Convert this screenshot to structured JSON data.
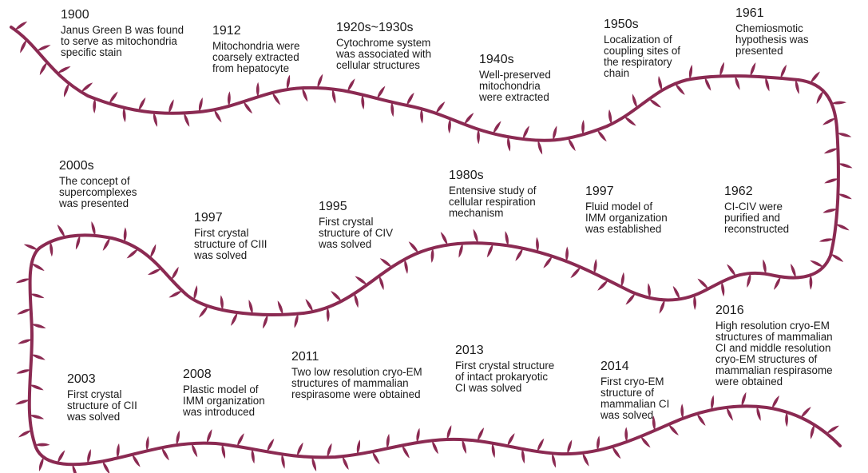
{
  "colors": {
    "vine": "#8b2a52",
    "text": "#1a1a1a",
    "background": "#ffffff"
  },
  "events": [
    {
      "id": "e1900",
      "year": "1900",
      "description": "Janus Green B was found\nto serve as mitochondria\nspecific  stain"
    },
    {
      "id": "e1912",
      "year": "1912",
      "description": "Mitochondria were\ncoarsely extracted\nfrom hepatocyte"
    },
    {
      "id": "e1920s",
      "year": "1920s~1930s",
      "description": "Cytochrome system\nwas associated with\ncellular structures"
    },
    {
      "id": "e1940s",
      "year": "1940s",
      "description": "Well-preserved\nmitochondria\nwere extracted"
    },
    {
      "id": "e1950s",
      "year": "1950s",
      "description": "Localization of\ncoupling sites of\nthe respiratory\nchain"
    },
    {
      "id": "e1961",
      "year": "1961",
      "description": "Chemiosmotic\nhypothesis was\npresented"
    },
    {
      "id": "e2000s",
      "year": "2000s",
      "description": "The concept of\nsupercomplexes\nwas presented"
    },
    {
      "id": "e1997a",
      "year": "1997",
      "description": "First crystal\nstructure of CIII\nwas solved"
    },
    {
      "id": "e1995",
      "year": "1995",
      "description": "First crystal\nstructure of CIV\nwas solved"
    },
    {
      "id": "e1980s",
      "year": "1980s",
      "description": "Entensive study of\ncellular respiration\nmechanism"
    },
    {
      "id": "e1997b",
      "year": "1997",
      "description": "Fluid model of\nIMM organization\nwas established"
    },
    {
      "id": "e1962",
      "year": "1962",
      "description": "CI-CIV were\npurified and\nreconstructed"
    },
    {
      "id": "e2016",
      "year": "2016",
      "description": "High resolution cryo-EM\nstructures of mammalian\nCI and middle resolution\ncryo-EM structures of\nmammalian respirasome\nwere obtained"
    },
    {
      "id": "e2003",
      "year": "2003",
      "description": "First crystal\nstructure of CII\nwas solved"
    },
    {
      "id": "e2008",
      "year": "2008",
      "description": "Plastic model of\nIMM organization\nwas introduced"
    },
    {
      "id": "e2011",
      "year": "2011",
      "description": "Two low resolution cryo-EM\nstructures of mammalian\nrespirasome were obtained"
    },
    {
      "id": "e2013",
      "year": "2013",
      "description": "First crystal structure\nof intact prokaryotic\nCI was solved"
    },
    {
      "id": "e2014",
      "year": "2014",
      "description": "First cryo-EM\nstructure of\nmammalian CI\nwas solved"
    }
  ]
}
